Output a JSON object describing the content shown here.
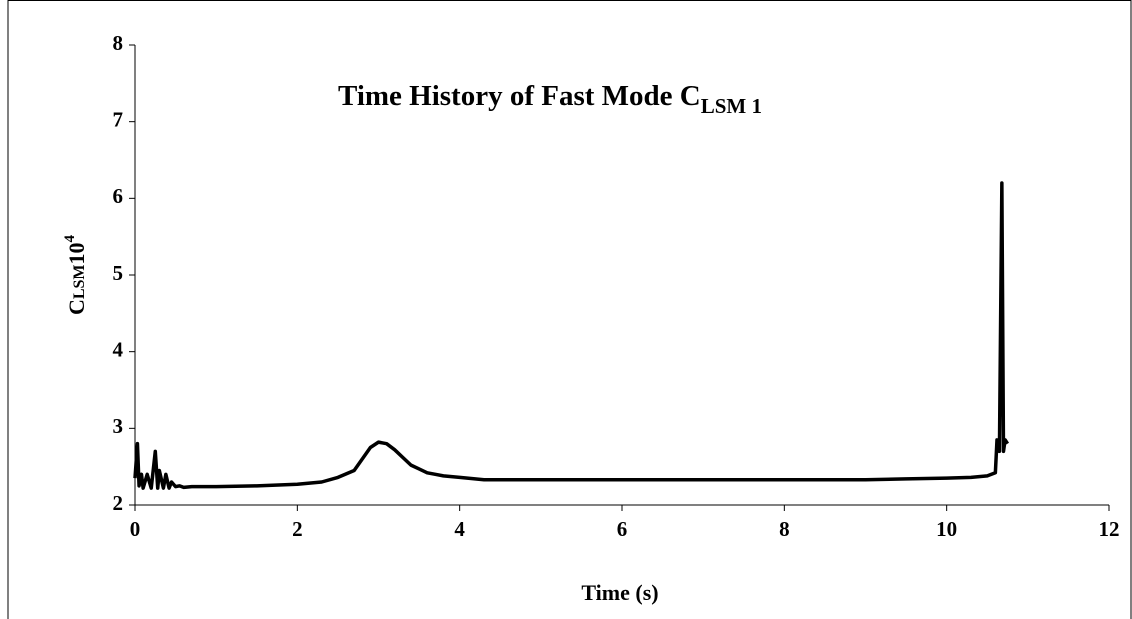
{
  "chart_data": {
    "type": "line",
    "title": "Time History of Fast Mode C",
    "title_sub": "LSM 1",
    "xlabel": "Time (s)",
    "ylabel": [
      "C",
      "LSM",
      "10",
      "4"
    ],
    "xlim": [
      0,
      12
    ],
    "xticks": [
      0,
      2,
      4,
      6,
      8,
      10,
      12
    ],
    "ylim": [
      2,
      8
    ],
    "yticks": [
      2,
      3,
      4,
      5,
      6,
      7,
      8
    ],
    "grid": false,
    "series": [
      {
        "name": null,
        "color": "#000000",
        "x": [
          0,
          0.03,
          0.05,
          0.08,
          0.1,
          0.15,
          0.2,
          0.25,
          0.28,
          0.3,
          0.35,
          0.38,
          0.42,
          0.45,
          0.5,
          0.55,
          0.6,
          0.7,
          1.0,
          1.5,
          2.0,
          2.3,
          2.5,
          2.7,
          2.8,
          2.9,
          3.0,
          3.1,
          3.2,
          3.3,
          3.4,
          3.5,
          3.6,
          3.7,
          3.8,
          4.0,
          4.3,
          5,
          6,
          7,
          8,
          9,
          9.5,
          10,
          10.3,
          10.5,
          10.6,
          10.62,
          10.65,
          10.68,
          10.7,
          10.72,
          10.75
        ],
        "values": [
          2.35,
          2.8,
          2.25,
          2.4,
          2.22,
          2.4,
          2.22,
          2.7,
          2.22,
          2.45,
          2.22,
          2.4,
          2.22,
          2.3,
          2.24,
          2.25,
          2.23,
          2.24,
          2.24,
          2.25,
          2.27,
          2.3,
          2.36,
          2.45,
          2.6,
          2.75,
          2.82,
          2.8,
          2.72,
          2.62,
          2.52,
          2.47,
          2.42,
          2.4,
          2.38,
          2.36,
          2.33,
          2.33,
          2.33,
          2.33,
          2.33,
          2.33,
          2.34,
          2.35,
          2.36,
          2.38,
          2.42,
          2.85,
          2.7,
          6.2,
          2.7,
          2.85,
          2.8
        ]
      }
    ]
  }
}
